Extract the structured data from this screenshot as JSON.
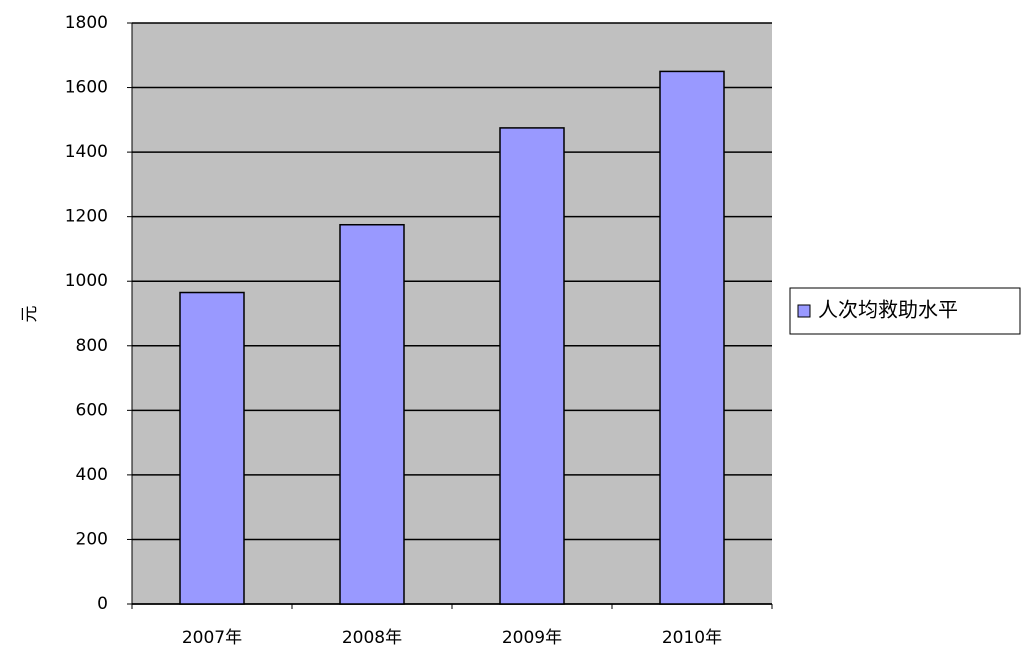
{
  "chart_data": {
    "type": "bar",
    "y_label": "元",
    "categories": [
      "2007年",
      "2008年",
      "2009年",
      "2010年"
    ],
    "series": [
      {
        "name": "人次均救助水平",
        "color": "#9999ff",
        "values": [
          965,
          1175,
          1475,
          1650
        ]
      }
    ],
    "ylim": [
      0,
      1800
    ],
    "yticks": [
      0,
      200,
      400,
      600,
      800,
      1000,
      1200,
      1400,
      1600,
      1800
    ],
    "grid": true,
    "legend": "right"
  }
}
